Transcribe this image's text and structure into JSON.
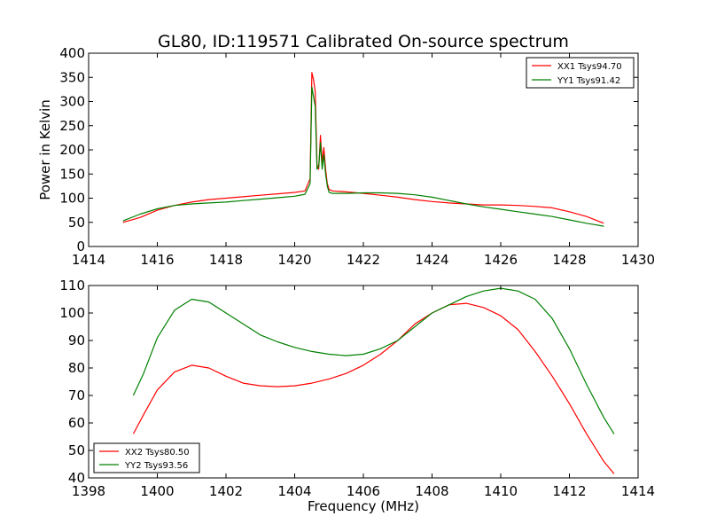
{
  "figure": {
    "title": "GL80, ID:119571 Calibrated On-source spectrum",
    "colors": {
      "xx": "#ff0000",
      "yy": "#008000"
    }
  },
  "chart_data": [
    {
      "type": "line",
      "xlabel": "",
      "ylabel": "Power in Kelvin",
      "xlim": [
        1414,
        1430
      ],
      "ylim": [
        0,
        400
      ],
      "xticks": [
        1414,
        1416,
        1418,
        1420,
        1422,
        1424,
        1426,
        1428,
        1430
      ],
      "yticks": [
        0,
        50,
        100,
        150,
        200,
        250,
        300,
        350,
        400
      ],
      "grid": false,
      "legend_position": "top-right",
      "series": [
        {
          "name": "XX1 Tsys94.70",
          "color": "#ff0000",
          "x": [
            1415,
            1415.5,
            1416,
            1416.5,
            1417,
            1417.5,
            1418,
            1418.5,
            1419,
            1419.5,
            1420,
            1420.3,
            1420.45,
            1420.5,
            1420.55,
            1420.6,
            1420.65,
            1420.7,
            1420.75,
            1420.8,
            1420.85,
            1420.9,
            1420.95,
            1421,
            1421.1,
            1421.5,
            1422,
            1422.5,
            1423,
            1423.5,
            1424,
            1424.5,
            1425,
            1425.5,
            1426,
            1426.5,
            1427,
            1427.5,
            1428,
            1428.5,
            1429
          ],
          "y": [
            50,
            60,
            75,
            85,
            92,
            97,
            100,
            103,
            106,
            109,
            112,
            115,
            140,
            360,
            345,
            320,
            170,
            160,
            230,
            175,
            205,
            160,
            130,
            118,
            115,
            113,
            110,
            106,
            102,
            97,
            93,
            90,
            88,
            86,
            86,
            85,
            83,
            80,
            72,
            62,
            48
          ]
        },
        {
          "name": "YY1 Tsys91.42",
          "color": "#008000",
          "x": [
            1415,
            1415.5,
            1416,
            1416.5,
            1417,
            1417.5,
            1418,
            1418.5,
            1419,
            1419.5,
            1420,
            1420.3,
            1420.45,
            1420.5,
            1420.55,
            1420.6,
            1420.65,
            1420.7,
            1420.75,
            1420.8,
            1420.85,
            1420.9,
            1420.95,
            1421,
            1421.1,
            1421.5,
            1422,
            1422.5,
            1423,
            1423.5,
            1424,
            1424.5,
            1425,
            1425.5,
            1426,
            1426.5,
            1427,
            1427.5,
            1428,
            1428.5,
            1429
          ],
          "y": [
            53,
            67,
            78,
            85,
            88,
            90,
            92,
            95,
            98,
            101,
            104,
            108,
            130,
            330,
            310,
            290,
            160,
            165,
            215,
            160,
            190,
            150,
            125,
            112,
            110,
            110,
            111,
            111,
            110,
            107,
            102,
            95,
            88,
            82,
            77,
            72,
            67,
            62,
            55,
            48,
            42
          ]
        }
      ]
    },
    {
      "type": "line",
      "xlabel": "Frequency (MHz)",
      "ylabel": "",
      "xlim": [
        1398,
        1414
      ],
      "ylim": [
        40,
        110
      ],
      "xticks": [
        1398,
        1400,
        1402,
        1404,
        1406,
        1408,
        1410,
        1412,
        1414
      ],
      "yticks": [
        40,
        50,
        60,
        70,
        80,
        90,
        100,
        110
      ],
      "grid": false,
      "legend_position": "bottom-left",
      "series": [
        {
          "name": "XX2 Tsys80.50",
          "color": "#ff0000",
          "x": [
            1399.3,
            1399.6,
            1400,
            1400.5,
            1401,
            1401.5,
            1402,
            1402.5,
            1403,
            1403.5,
            1404,
            1404.5,
            1405,
            1405.5,
            1406,
            1406.5,
            1407,
            1407.5,
            1408,
            1408.5,
            1409,
            1409.5,
            1410,
            1410.5,
            1411,
            1411.5,
            1412,
            1412.5,
            1413,
            1413.3
          ],
          "y": [
            56,
            63,
            72,
            78.5,
            81,
            80,
            77,
            74.5,
            73.5,
            73.2,
            73.5,
            74.5,
            76,
            78,
            81,
            85,
            90,
            96,
            100,
            103,
            103.5,
            102,
            99,
            94,
            86,
            77,
            67,
            56,
            46,
            41.5
          ]
        },
        {
          "name": "YY2 Tsys93.56",
          "color": "#008000",
          "x": [
            1399.3,
            1399.6,
            1400,
            1400.5,
            1401,
            1401.5,
            1402,
            1402.5,
            1403,
            1403.5,
            1404,
            1404.5,
            1405,
            1405.5,
            1406,
            1406.5,
            1407,
            1407.5,
            1408,
            1408.5,
            1409,
            1409.5,
            1410,
            1410.5,
            1411,
            1411.5,
            1412,
            1412.5,
            1413,
            1413.3
          ],
          "y": [
            70,
            78,
            91,
            101,
            105,
            104,
            100,
            96,
            92,
            89.5,
            87.5,
            86,
            85,
            84.5,
            85,
            87,
            90,
            95,
            100,
            103,
            106,
            108,
            109,
            108,
            105,
            98,
            87,
            74,
            62,
            56
          ]
        }
      ]
    }
  ]
}
